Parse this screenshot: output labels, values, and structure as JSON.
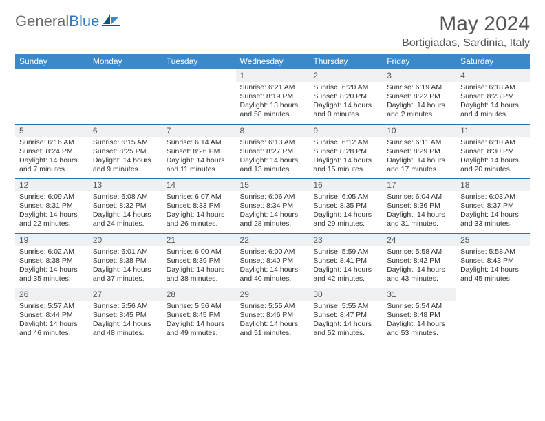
{
  "logo": {
    "textGray": "General",
    "textBlue": "Blue"
  },
  "title": "May 2024",
  "location": "Bortigiadas, Sardinia, Italy",
  "colors": {
    "headerBg": "#3b89c9",
    "headerText": "#ffffff",
    "rowBorder": "#2f6fa8",
    "dayNumBg": "#eef0f2",
    "logoGray": "#6b6b6b",
    "logoBlue": "#2f7bbf",
    "bodyText": "#333333"
  },
  "typography": {
    "titleSize": 30,
    "locationSize": 16,
    "dayHeaderSize": 12,
    "dayNumSize": 12,
    "bodySize": 10.5,
    "family": "Arial"
  },
  "dayHeaders": [
    "Sunday",
    "Monday",
    "Tuesday",
    "Wednesday",
    "Thursday",
    "Friday",
    "Saturday"
  ],
  "weeks": [
    [
      {
        "num": "",
        "sunrise": "",
        "sunset": "",
        "daylight": ""
      },
      {
        "num": "",
        "sunrise": "",
        "sunset": "",
        "daylight": ""
      },
      {
        "num": "",
        "sunrise": "",
        "sunset": "",
        "daylight": ""
      },
      {
        "num": "1",
        "sunrise": "Sunrise: 6:21 AM",
        "sunset": "Sunset: 8:19 PM",
        "daylight": "Daylight: 13 hours and 58 minutes."
      },
      {
        "num": "2",
        "sunrise": "Sunrise: 6:20 AM",
        "sunset": "Sunset: 8:20 PM",
        "daylight": "Daylight: 14 hours and 0 minutes."
      },
      {
        "num": "3",
        "sunrise": "Sunrise: 6:19 AM",
        "sunset": "Sunset: 8:22 PM",
        "daylight": "Daylight: 14 hours and 2 minutes."
      },
      {
        "num": "4",
        "sunrise": "Sunrise: 6:18 AM",
        "sunset": "Sunset: 8:23 PM",
        "daylight": "Daylight: 14 hours and 4 minutes."
      }
    ],
    [
      {
        "num": "5",
        "sunrise": "Sunrise: 6:16 AM",
        "sunset": "Sunset: 8:24 PM",
        "daylight": "Daylight: 14 hours and 7 minutes."
      },
      {
        "num": "6",
        "sunrise": "Sunrise: 6:15 AM",
        "sunset": "Sunset: 8:25 PM",
        "daylight": "Daylight: 14 hours and 9 minutes."
      },
      {
        "num": "7",
        "sunrise": "Sunrise: 6:14 AM",
        "sunset": "Sunset: 8:26 PM",
        "daylight": "Daylight: 14 hours and 11 minutes."
      },
      {
        "num": "8",
        "sunrise": "Sunrise: 6:13 AM",
        "sunset": "Sunset: 8:27 PM",
        "daylight": "Daylight: 14 hours and 13 minutes."
      },
      {
        "num": "9",
        "sunrise": "Sunrise: 6:12 AM",
        "sunset": "Sunset: 8:28 PM",
        "daylight": "Daylight: 14 hours and 15 minutes."
      },
      {
        "num": "10",
        "sunrise": "Sunrise: 6:11 AM",
        "sunset": "Sunset: 8:29 PM",
        "daylight": "Daylight: 14 hours and 17 minutes."
      },
      {
        "num": "11",
        "sunrise": "Sunrise: 6:10 AM",
        "sunset": "Sunset: 8:30 PM",
        "daylight": "Daylight: 14 hours and 20 minutes."
      }
    ],
    [
      {
        "num": "12",
        "sunrise": "Sunrise: 6:09 AM",
        "sunset": "Sunset: 8:31 PM",
        "daylight": "Daylight: 14 hours and 22 minutes."
      },
      {
        "num": "13",
        "sunrise": "Sunrise: 6:08 AM",
        "sunset": "Sunset: 8:32 PM",
        "daylight": "Daylight: 14 hours and 24 minutes."
      },
      {
        "num": "14",
        "sunrise": "Sunrise: 6:07 AM",
        "sunset": "Sunset: 8:33 PM",
        "daylight": "Daylight: 14 hours and 26 minutes."
      },
      {
        "num": "15",
        "sunrise": "Sunrise: 6:06 AM",
        "sunset": "Sunset: 8:34 PM",
        "daylight": "Daylight: 14 hours and 28 minutes."
      },
      {
        "num": "16",
        "sunrise": "Sunrise: 6:05 AM",
        "sunset": "Sunset: 8:35 PM",
        "daylight": "Daylight: 14 hours and 29 minutes."
      },
      {
        "num": "17",
        "sunrise": "Sunrise: 6:04 AM",
        "sunset": "Sunset: 8:36 PM",
        "daylight": "Daylight: 14 hours and 31 minutes."
      },
      {
        "num": "18",
        "sunrise": "Sunrise: 6:03 AM",
        "sunset": "Sunset: 8:37 PM",
        "daylight": "Daylight: 14 hours and 33 minutes."
      }
    ],
    [
      {
        "num": "19",
        "sunrise": "Sunrise: 6:02 AM",
        "sunset": "Sunset: 8:38 PM",
        "daylight": "Daylight: 14 hours and 35 minutes."
      },
      {
        "num": "20",
        "sunrise": "Sunrise: 6:01 AM",
        "sunset": "Sunset: 8:38 PM",
        "daylight": "Daylight: 14 hours and 37 minutes."
      },
      {
        "num": "21",
        "sunrise": "Sunrise: 6:00 AM",
        "sunset": "Sunset: 8:39 PM",
        "daylight": "Daylight: 14 hours and 38 minutes."
      },
      {
        "num": "22",
        "sunrise": "Sunrise: 6:00 AM",
        "sunset": "Sunset: 8:40 PM",
        "daylight": "Daylight: 14 hours and 40 minutes."
      },
      {
        "num": "23",
        "sunrise": "Sunrise: 5:59 AM",
        "sunset": "Sunset: 8:41 PM",
        "daylight": "Daylight: 14 hours and 42 minutes."
      },
      {
        "num": "24",
        "sunrise": "Sunrise: 5:58 AM",
        "sunset": "Sunset: 8:42 PM",
        "daylight": "Daylight: 14 hours and 43 minutes."
      },
      {
        "num": "25",
        "sunrise": "Sunrise: 5:58 AM",
        "sunset": "Sunset: 8:43 PM",
        "daylight": "Daylight: 14 hours and 45 minutes."
      }
    ],
    [
      {
        "num": "26",
        "sunrise": "Sunrise: 5:57 AM",
        "sunset": "Sunset: 8:44 PM",
        "daylight": "Daylight: 14 hours and 46 minutes."
      },
      {
        "num": "27",
        "sunrise": "Sunrise: 5:56 AM",
        "sunset": "Sunset: 8:45 PM",
        "daylight": "Daylight: 14 hours and 48 minutes."
      },
      {
        "num": "28",
        "sunrise": "Sunrise: 5:56 AM",
        "sunset": "Sunset: 8:45 PM",
        "daylight": "Daylight: 14 hours and 49 minutes."
      },
      {
        "num": "29",
        "sunrise": "Sunrise: 5:55 AM",
        "sunset": "Sunset: 8:46 PM",
        "daylight": "Daylight: 14 hours and 51 minutes."
      },
      {
        "num": "30",
        "sunrise": "Sunrise: 5:55 AM",
        "sunset": "Sunset: 8:47 PM",
        "daylight": "Daylight: 14 hours and 52 minutes."
      },
      {
        "num": "31",
        "sunrise": "Sunrise: 5:54 AM",
        "sunset": "Sunset: 8:48 PM",
        "daylight": "Daylight: 14 hours and 53 minutes."
      },
      {
        "num": "",
        "sunrise": "",
        "sunset": "",
        "daylight": ""
      }
    ]
  ]
}
